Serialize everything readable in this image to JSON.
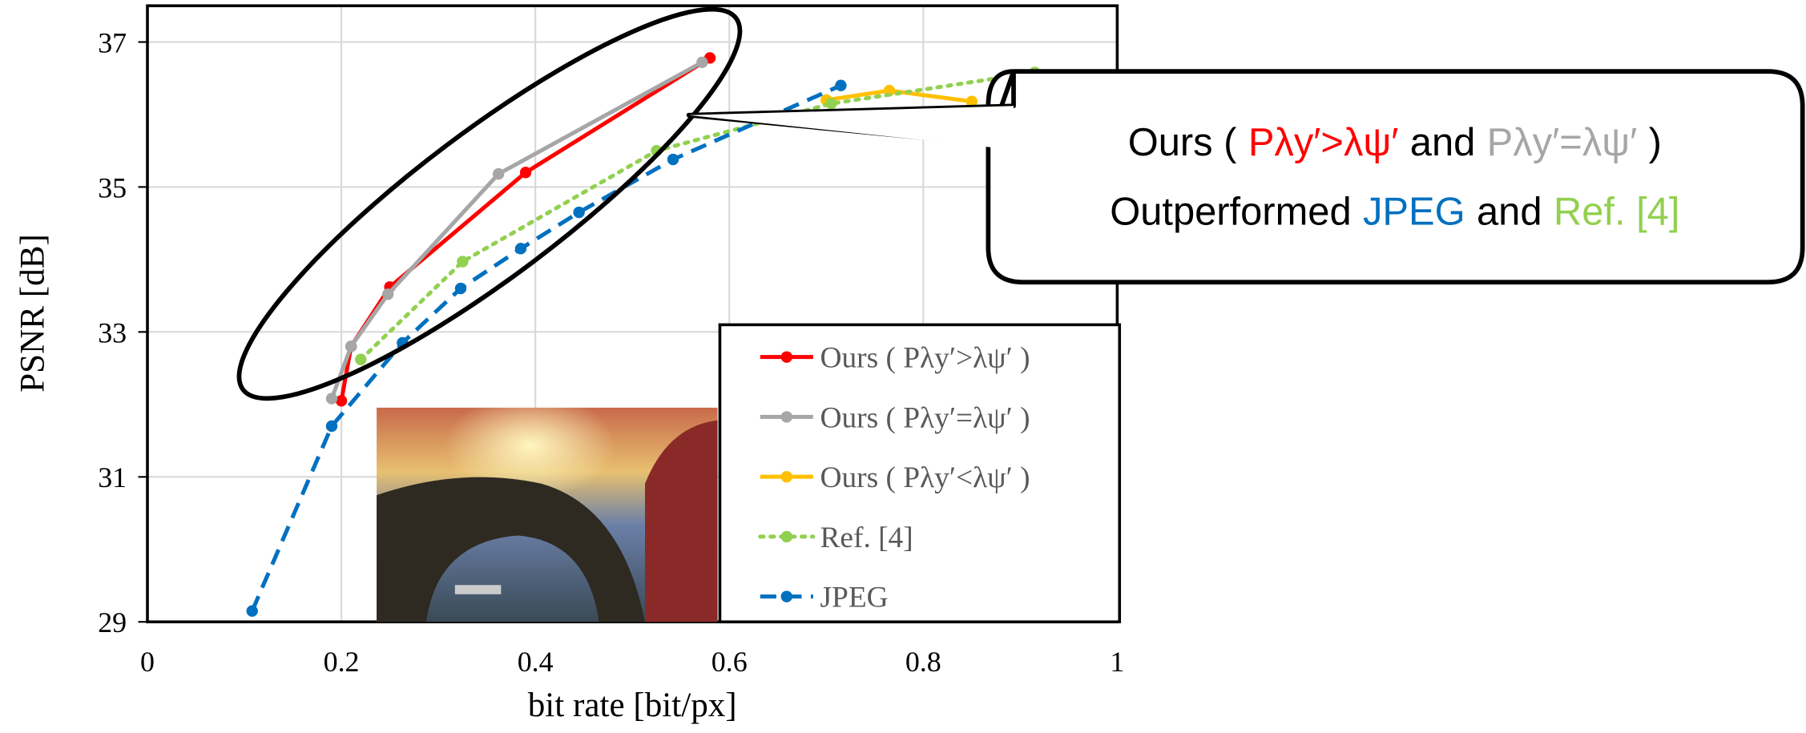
{
  "chart_data": {
    "type": "line",
    "x_label": "bit rate [bit/px]",
    "y_label": "PSNR [dB]",
    "xlim": [
      0,
      1
    ],
    "ylim": [
      29,
      37.5
    ],
    "xticks": [
      0,
      0.2,
      0.4,
      0.6,
      0.8,
      1
    ],
    "yticks": [
      29,
      31,
      33,
      35,
      37
    ],
    "grid": true,
    "legend": "lower-right",
    "series": [
      {
        "name": "Ours ( Pλy′>λψ′ )",
        "color": "#ff0000",
        "style": "solid",
        "x": [
          0.2,
          0.21,
          0.25,
          0.39,
          0.58
        ],
        "values": [
          32.05,
          32.8,
          33.62,
          35.2,
          36.78
        ]
      },
      {
        "name": "Ours ( Pλy′=λψ′ )",
        "color": "#a6a6a6",
        "style": "solid",
        "x": [
          0.19,
          0.21,
          0.248,
          0.362,
          0.572
        ],
        "values": [
          32.08,
          32.8,
          33.52,
          35.18,
          36.72
        ]
      },
      {
        "name": "Ours ( Pλy′<λψ′ )",
        "color": "#ffc000",
        "style": "solid",
        "x": [
          0.7,
          0.765,
          0.85
        ],
        "values": [
          36.2,
          36.33,
          36.18
        ]
      },
      {
        "name": "Ref. [4]",
        "color": "#92d050",
        "style": "dotted",
        "x": [
          0.22,
          0.325,
          0.525,
          0.705,
          0.915
        ],
        "values": [
          32.62,
          33.97,
          35.5,
          36.15,
          36.58
        ]
      },
      {
        "name": "JPEG",
        "color": "#0070c0",
        "style": "dashed",
        "x": [
          0.108,
          0.19,
          0.263,
          0.323,
          0.385,
          0.445,
          0.542,
          0.715
        ],
        "values": [
          29.15,
          31.7,
          32.85,
          33.6,
          34.15,
          34.65,
          35.38,
          36.4
        ]
      }
    ],
    "annotation": {
      "lines": [
        [
          {
            "text": "Ours (",
            "color": "#000000"
          },
          {
            "text": "Pλy′>λψ′",
            "color": "#ff0000"
          },
          {
            "text": "and",
            "color": "#000000"
          },
          {
            "text": "Pλy′=λψ′",
            "color": "#a6a6a6"
          },
          {
            "text": ")",
            "color": "#000000"
          }
        ],
        [
          {
            "text": "Outperformed",
            "color": "#000000"
          },
          {
            "text": "JPEG",
            "color": "#0070c0"
          },
          {
            "text": "and",
            "color": "#000000"
          },
          {
            "text": "Ref. [4]",
            "color": "#92d050"
          }
        ]
      ]
    }
  }
}
